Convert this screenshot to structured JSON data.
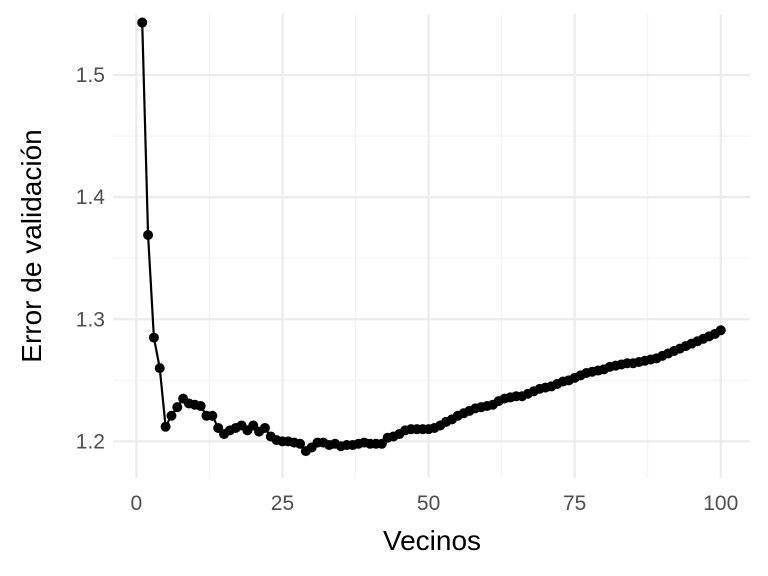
{
  "chart_data": {
    "type": "line",
    "title": "",
    "xlabel": "Vecinos",
    "ylabel": "Error de validación",
    "xlim": [
      -4,
      105
    ],
    "ylim": [
      1.17,
      1.55
    ],
    "x_ticks": [
      0,
      25,
      50,
      75,
      100
    ],
    "x_tick_labels": [
      "0",
      "25",
      "50",
      "75",
      "100"
    ],
    "y_ticks": [
      1.2,
      1.3,
      1.4,
      1.5
    ],
    "y_tick_labels": [
      "1.2",
      "1.3",
      "1.4",
      "1.5"
    ],
    "grid": true,
    "legend": "none",
    "colors": {
      "line": "#000000",
      "point": "#000000",
      "grid": "#ebebeb",
      "background": "#ffffff"
    },
    "series": [
      {
        "x": [
          1,
          2,
          3,
          4,
          5,
          6,
          7,
          8,
          9,
          10,
          11,
          12,
          13,
          14,
          15,
          16,
          17,
          18,
          19,
          20,
          21,
          22,
          23,
          24,
          25,
          26,
          27,
          28,
          29,
          30,
          31,
          32,
          33,
          34,
          35,
          36,
          37,
          38,
          39,
          40,
          41,
          42,
          43,
          44,
          45,
          46,
          47,
          48,
          49,
          50,
          51,
          52,
          53,
          54,
          55,
          56,
          57,
          58,
          59,
          60,
          61,
          62,
          63,
          64,
          65,
          66,
          67,
          68,
          69,
          70,
          71,
          72,
          73,
          74,
          75,
          76,
          77,
          78,
          79,
          80,
          81,
          82,
          83,
          84,
          85,
          86,
          87,
          88,
          89,
          90,
          91,
          92,
          93,
          94,
          95,
          96,
          97,
          98,
          99,
          100
        ],
        "values": [
          1.543,
          1.369,
          1.285,
          1.26,
          1.212,
          1.221,
          1.228,
          1.235,
          1.231,
          1.23,
          1.229,
          1.221,
          1.221,
          1.211,
          1.206,
          1.209,
          1.211,
          1.213,
          1.209,
          1.213,
          1.208,
          1.211,
          1.204,
          1.201,
          1.2,
          1.2,
          1.199,
          1.198,
          1.192,
          1.195,
          1.199,
          1.199,
          1.197,
          1.198,
          1.196,
          1.197,
          1.197,
          1.198,
          1.199,
          1.198,
          1.198,
          1.198,
          1.203,
          1.204,
          1.206,
          1.209,
          1.21,
          1.21,
          1.21,
          1.21,
          1.211,
          1.213,
          1.216,
          1.218,
          1.221,
          1.223,
          1.225,
          1.227,
          1.228,
          1.229,
          1.23,
          1.233,
          1.235,
          1.236,
          1.237,
          1.237,
          1.239,
          1.241,
          1.243,
          1.244,
          1.245,
          1.247,
          1.249,
          1.25,
          1.252,
          1.254,
          1.256,
          1.257,
          1.258,
          1.259,
          1.261,
          1.262,
          1.263,
          1.264,
          1.264,
          1.265,
          1.266,
          1.267,
          1.268,
          1.27,
          1.272,
          1.274,
          1.276,
          1.278,
          1.28,
          1.282,
          1.284,
          1.286,
          1.288,
          1.291
        ]
      }
    ]
  }
}
